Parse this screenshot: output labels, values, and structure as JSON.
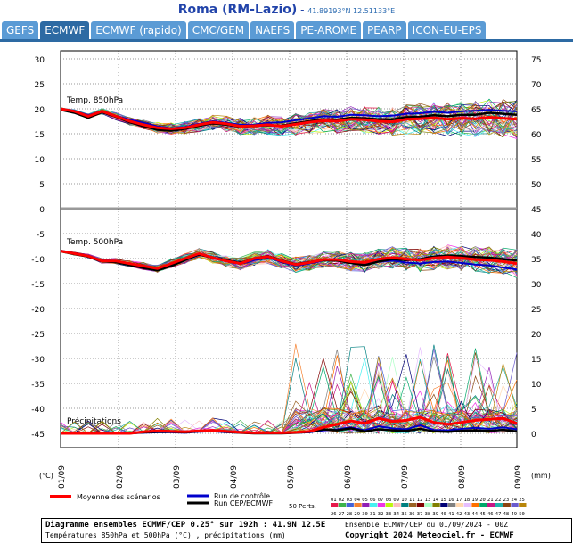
{
  "header": {
    "location": "Roma (RM-Lazio)",
    "separator": " - ",
    "coords": "41.89193°N 12.51133°E"
  },
  "tabs": [
    {
      "label": "GEFS",
      "active": false
    },
    {
      "label": "ECMWF",
      "active": true
    },
    {
      "label": "ECMWF (rapido)",
      "active": false
    },
    {
      "label": "CMC/GEM",
      "active": false
    },
    {
      "label": "NAEFS",
      "active": false
    },
    {
      "label": "PE-AROME",
      "active": false
    },
    {
      "label": "PEARP",
      "active": false
    },
    {
      "label": "ICON-EU-EPS",
      "active": false
    }
  ],
  "chart_data": {
    "type": "line",
    "y_left_unit": "(°C)",
    "y_right_unit": "(mm)",
    "y_left_ticks": [
      30,
      25,
      20,
      15,
      10,
      5,
      0,
      -5,
      -10,
      -15,
      -20,
      -25,
      -30,
      -35,
      -40,
      -45
    ],
    "y_right_ticks_upper": [
      75,
      70,
      65,
      60,
      55,
      50,
      45
    ],
    "y_right_ticks_lower": [
      40,
      35,
      30,
      25,
      20,
      15,
      10,
      5,
      0
    ],
    "x_ticks": [
      "01/09",
      "02/09",
      "03/09",
      "04/09",
      "05/09",
      "06/09",
      "07/09",
      "08/09",
      "09/09"
    ],
    "section_labels": {
      "t850": "Temp. 850hPa",
      "t500": "Temp. 500hPa",
      "precip": "Précipitations"
    },
    "t850_mean": [
      20,
      19.5,
      18.5,
      19.5,
      18.5,
      17.5,
      16.8,
      16.2,
      16,
      16.2,
      16.8,
      17.3,
      17,
      16.5,
      16.6,
      16.8,
      16.5,
      16.9,
      17.3,
      17.6,
      17.5,
      17.9,
      17.8,
      17.5,
      17.4,
      17.9,
      18,
      18.2,
      17.9,
      18.1,
      18,
      18.3,
      18.1,
      17.9
    ],
    "t850_control": [
      20,
      19.6,
      18.7,
      19.6,
      18.6,
      17.8,
      17.2,
      16.5,
      16.1,
      16.4,
      17,
      17.5,
      17.2,
      16.8,
      16.8,
      17.2,
      17.3,
      17.7,
      18.1,
      18.5,
      18.4,
      18.8,
      18.7,
      18.5,
      18.6,
      19,
      19.1,
      19.4,
      19.2,
      19.5,
      19.6,
      19.8,
      19.6,
      19.5
    ],
    "t850_oper": [
      19.8,
      19.2,
      18.2,
      19.3,
      18.4,
      17.3,
      16.5,
      15.8,
      15.6,
      16,
      16.6,
      17.1,
      16.8,
      16.4,
      16.6,
      16.7,
      16.6,
      17.1,
      17.5,
      17.9,
      17.8,
      18.2,
      18.1,
      17.9,
      17.9,
      18.3,
      18.4,
      18.7,
      18.5,
      18.8,
      18.8,
      19.2,
      19,
      18.8
    ],
    "t500_mean": [
      -8.5,
      -9,
      -9.5,
      -10.5,
      -10.5,
      -11,
      -11.5,
      -12,
      -11,
      -10,
      -9,
      -9.8,
      -10.5,
      -11,
      -10,
      -9.6,
      -10.5,
      -11.2,
      -10.8,
      -10.2,
      -10.2,
      -10.6,
      -10.8,
      -10.1,
      -9.8,
      -10.1,
      -10.3,
      -9.9,
      -9.7,
      -9.9,
      -10.2,
      -10.3,
      -10.6,
      -11
    ],
    "t500_control": [
      -8.4,
      -8.9,
      -9.4,
      -10.4,
      -10.4,
      -11,
      -11.6,
      -12.1,
      -11.2,
      -10.1,
      -9.2,
      -9.9,
      -10.6,
      -11.1,
      -10.3,
      -9.8,
      -10.7,
      -11.4,
      -11,
      -10.4,
      -10.4,
      -10.9,
      -11.2,
      -10.6,
      -10.4,
      -10.8,
      -11,
      -10.7,
      -10.6,
      -10.9,
      -11.2,
      -11.4,
      -11.8,
      -12.2
    ],
    "t500_oper": [
      -8.5,
      -9.1,
      -9.6,
      -10.6,
      -10.7,
      -11.3,
      -11.9,
      -12.4,
      -11.5,
      -10.3,
      -9.2,
      -9.8,
      -10.4,
      -10.9,
      -10,
      -9.5,
      -10.4,
      -11.1,
      -10.7,
      -10.3,
      -10.4,
      -10.9,
      -11.3,
      -10.6,
      -10.1,
      -10.3,
      -10.1,
      -9.6,
      -9.4,
      -9.5,
      -9.7,
      -9.8,
      -10.1,
      -10.4
    ],
    "precip_mean_mm": [
      0,
      0,
      0,
      0,
      0,
      0,
      0.3,
      0.5,
      0.4,
      0.3,
      0.5,
      0.6,
      0.4,
      0.2,
      0.1,
      0.1,
      0.1,
      0.2,
      0.4,
      1.2,
      1.8,
      2.5,
      2.0,
      3.0,
      2.4,
      2.6,
      3.2,
      2.2,
      1.8,
      2.2,
      2.6,
      2.8,
      3.0,
      2.0
    ],
    "precip_control_mm": [
      0,
      0,
      0,
      0,
      0,
      0,
      0.1,
      0.2,
      0.2,
      0.1,
      0.3,
      0.4,
      0.2,
      0.1,
      0,
      0,
      0,
      0.1,
      0.2,
      0.6,
      0.8,
      1.2,
      0.6,
      1.4,
      1.0,
      0.8,
      1.6,
      0.7,
      0.6,
      0.9,
      1.1,
      0.9,
      1.2,
      0.8
    ],
    "precip_oper_mm": [
      0,
      0,
      0,
      0,
      0,
      0,
      0.2,
      0.3,
      0.3,
      0.2,
      0.4,
      0.5,
      0.3,
      0.1,
      0,
      0,
      0,
      0.1,
      0.3,
      0.8,
      0.6,
      1.0,
      0.4,
      0.8,
      0.6,
      0.5,
      0.9,
      0.4,
      0.3,
      0.5,
      0.6,
      0.5,
      0.7,
      0.4
    ],
    "legend": {
      "mean": "Moyenne des scénarios",
      "control": "Run de contrôle",
      "oper": "Run CEP/ECMWF",
      "perts": "50 Perts."
    },
    "pert_numbers_row1": [
      "01",
      "02",
      "03",
      "04",
      "05",
      "06",
      "07",
      "08",
      "09",
      "10",
      "11",
      "12",
      "13",
      "14",
      "15",
      "16",
      "17",
      "18",
      "19",
      "20",
      "21",
      "22",
      "23",
      "24",
      "25"
    ],
    "pert_numbers_row2": [
      "26",
      "27",
      "28",
      "29",
      "30",
      "31",
      "32",
      "33",
      "34",
      "35",
      "36",
      "37",
      "38",
      "39",
      "40",
      "41",
      "42",
      "43",
      "44",
      "45",
      "46",
      "47",
      "48",
      "49",
      "50"
    ],
    "colors": {
      "mean": "#ff0000",
      "control": "#0000cc",
      "oper": "#000000",
      "zero_line": "#999999",
      "grid": "#000000"
    }
  },
  "footer": {
    "line1": "Diagramme ensembles ECMWF/CEP 0.25° sur 192h : 41.9N 12.5E",
    "line2": "Températures 850hPa et 500hPa (°C) , précipitations (mm)",
    "line3": "Ensemble ECMWF/CEP du 01/09/2024 - 00Z",
    "line4": "Copyright 2024 Meteociel.fr - ECMWF"
  }
}
